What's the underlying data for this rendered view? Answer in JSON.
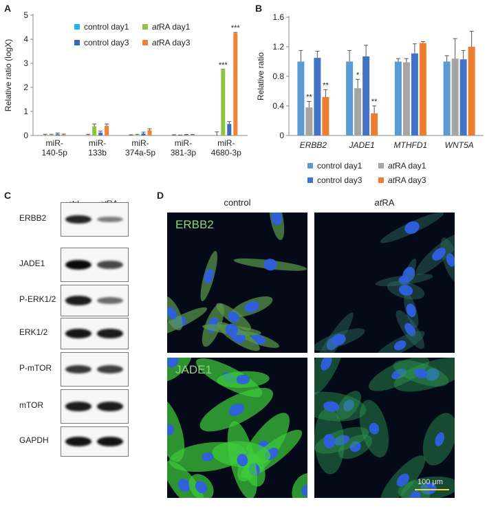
{
  "panels": {
    "a": "A",
    "b": "B",
    "c": "C",
    "d": "D"
  },
  "colors": {
    "control_day1_A": "#1fb6ea",
    "control_day3_A": "#3a6db5",
    "atra_day1_A": "#8cc63f",
    "atra_day3_A": "#f08236",
    "control_day1_B": "#5b9bd5",
    "atra_day1_B": "#a5a5a5",
    "control_day3_B": "#4472c4",
    "atra_day3_B": "#ed7d31"
  },
  "chart_data": [
    {
      "id": "A",
      "type": "bar",
      "ylabel": "Relative ratio (logX)",
      "ylim": [
        0,
        5
      ],
      "yticks": [
        "0",
        "1",
        "2",
        "3",
        "4",
        "5"
      ],
      "categories": [
        [
          "miR-",
          "140-5p"
        ],
        [
          "miR-",
          "133b"
        ],
        [
          "miR-",
          "374a-5p"
        ],
        [
          "miR-",
          "381-3p"
        ],
        [
          "miR-",
          "4680-3p"
        ]
      ],
      "legend": [
        {
          "pre": "control day1",
          "italic": "",
          "post": ""
        },
        {
          "pre": "",
          "italic": "at",
          "post": "RA day1"
        },
        {
          "pre": "control day3",
          "italic": "",
          "post": ""
        },
        {
          "pre": "",
          "italic": "at",
          "post": "RA day3"
        }
      ],
      "series": [
        {
          "name": "control day1",
          "values": [
            0.0,
            0.0,
            0.0,
            0.0,
            0.0
          ],
          "errors": [
            0.05,
            0.05,
            0.03,
            0.03,
            0.15
          ]
        },
        {
          "name": "atRA day1",
          "values": [
            0.02,
            0.38,
            0.02,
            0.0,
            2.72
          ],
          "errors": [
            0.03,
            0.1,
            0.03,
            0.02,
            0.03
          ]
        },
        {
          "name": "control day3",
          "values": [
            0.05,
            0.12,
            0.08,
            0.02,
            0.48
          ],
          "errors": [
            0.05,
            0.06,
            0.06,
            0.02,
            0.1
          ]
        },
        {
          "name": "atRA day3",
          "values": [
            0.03,
            0.4,
            0.22,
            0.02,
            4.25
          ],
          "errors": [
            0.03,
            0.08,
            0.06,
            0.02,
            0.03
          ]
        }
      ],
      "annotations": [
        {
          "series": 1,
          "category": 4,
          "text": "***"
        },
        {
          "series": 3,
          "category": 4,
          "text": "***"
        }
      ]
    },
    {
      "id": "B",
      "type": "bar",
      "ylabel": "Relative ratio",
      "ylim": [
        0,
        1.6
      ],
      "yticks": [
        "0",
        "0.4",
        "0.8",
        "1.2",
        "1.6"
      ],
      "categories": [
        "ERBB2",
        "JADE1",
        "MTHFD1",
        "WNT5A"
      ],
      "legend": [
        {
          "pre": "control day1",
          "italic": "",
          "post": ""
        },
        {
          "pre": "",
          "italic": "at",
          "post": "RA day1"
        },
        {
          "pre": "control day3",
          "italic": "",
          "post": ""
        },
        {
          "pre": "",
          "italic": "at",
          "post": "RA day3"
        }
      ],
      "series": [
        {
          "name": "control day1",
          "values": [
            1.0,
            1.0,
            1.0,
            1.0
          ],
          "errors": [
            0.15,
            0.15,
            0.04,
            0.08
          ]
        },
        {
          "name": "atRA day1",
          "values": [
            0.38,
            0.64,
            0.99,
            1.04
          ],
          "errors": [
            0.08,
            0.12,
            0.05,
            0.27
          ]
        },
        {
          "name": "control day3",
          "values": [
            1.05,
            1.07,
            1.11,
            1.03
          ],
          "errors": [
            0.09,
            0.15,
            0.13,
            0.12
          ]
        },
        {
          "name": "atRA day3",
          "values": [
            0.52,
            0.3,
            1.25,
            1.2
          ],
          "errors": [
            0.1,
            0.1,
            0.02,
            0.21
          ]
        }
      ],
      "annotations": [
        {
          "series": 1,
          "category": 0,
          "text": "**"
        },
        {
          "series": 3,
          "category": 0,
          "text": "**"
        },
        {
          "series": 1,
          "category": 1,
          "text": "*"
        },
        {
          "series": 3,
          "category": 1,
          "text": "**"
        }
      ]
    }
  ],
  "western": {
    "col_ctrl": "ctrl",
    "col_atra_italic": "at",
    "col_atra_rest": "RA",
    "rows": [
      {
        "label": "ERBB2",
        "ctrl": 0.85,
        "atra": 0.35
      },
      {
        "label": "JADE1",
        "ctrl": 1.0,
        "atra": 0.65
      },
      {
        "label": "P-ERK1/2",
        "ctrl": 0.9,
        "atra": 0.45
      },
      {
        "label": "ERK1/2",
        "ctrl": 0.95,
        "atra": 0.9
      },
      {
        "label": "P-mTOR",
        "ctrl": 0.75,
        "atra": 0.7
      },
      {
        "label": "mTOR",
        "ctrl": 0.9,
        "atra": 0.9
      },
      {
        "label": "GAPDH",
        "ctrl": 0.95,
        "atra": 0.95
      }
    ]
  },
  "micrographs": {
    "col_control": "control",
    "col_atra_italic": "at",
    "col_atra_rest": "RA",
    "row1_label": "ERBB2",
    "row2_label": "JADE1",
    "scalebar": "100 μm"
  }
}
